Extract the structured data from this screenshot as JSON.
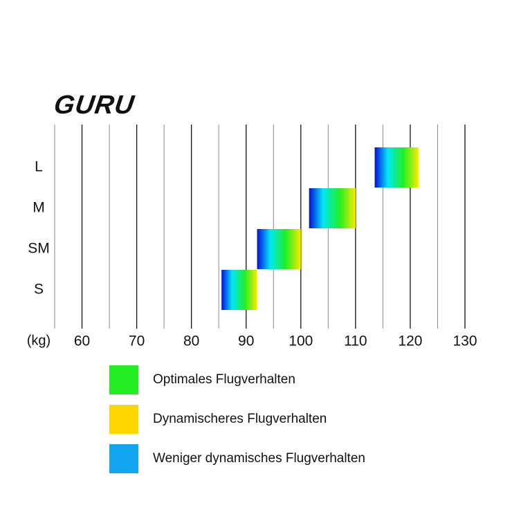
{
  "chart_data": {
    "type": "range_bar",
    "title": "GURU",
    "xlabel": "(kg)",
    "categories": [
      "L",
      "M",
      "SM",
      "S"
    ],
    "values": [
      [
        113.5,
        121.5
      ],
      [
        101.5,
        110
      ],
      [
        92,
        100
      ],
      [
        85.5,
        92
      ]
    ],
    "xlim": [
      55,
      130
    ],
    "xticks": [
      60,
      70,
      80,
      90,
      100,
      110,
      120,
      130
    ],
    "minor_xticks": [
      55,
      65,
      75,
      85,
      95,
      105,
      115,
      125
    ],
    "grid": true,
    "legend": [
      {
        "name": "Optimales Flugverhalten",
        "color": "#22ee22"
      },
      {
        "name": "Dynamischeres Flugverhalten",
        "color": "#ffd700"
      },
      {
        "name": "Weniger dynamisches Flugverhalten",
        "color": "#14a5f0"
      }
    ]
  }
}
